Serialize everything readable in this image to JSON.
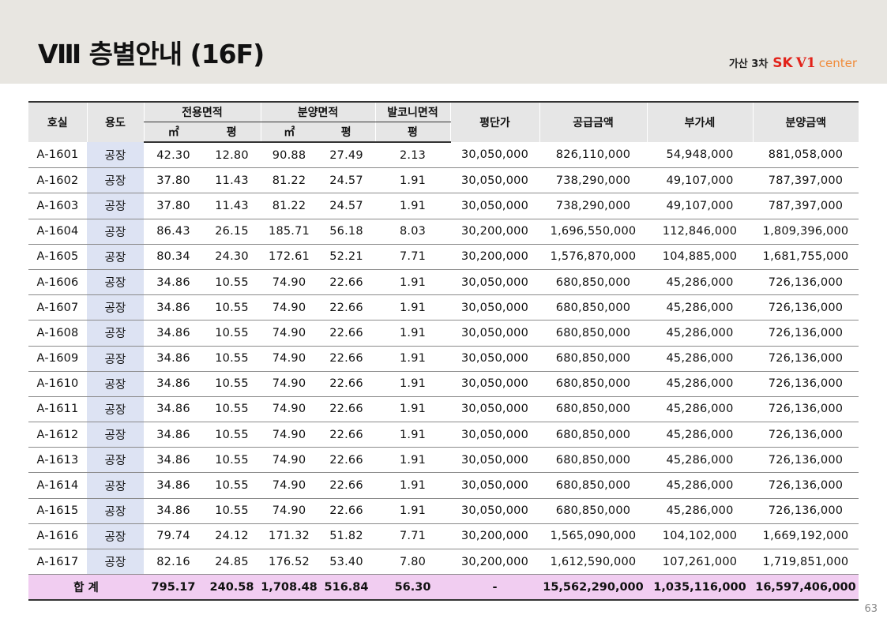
{
  "header": {
    "title": "Ⅷ 층별안내 (16F)",
    "brand_prefix": "가산 3차",
    "brand_logo": {
      "sk": "SK",
      "v1": "V1",
      "center": "center"
    }
  },
  "table": {
    "headers": {
      "room": "호실",
      "usage": "용도",
      "exclusive_area": "전용면적",
      "sale_area": "분양면적",
      "balcony_area": "발코니면적",
      "price_per_pyeong": "평단가",
      "supply_price": "공급금액",
      "vat": "부가세",
      "sale_price": "분양금액",
      "unit_sqm": "㎡",
      "unit_pyeong": "평"
    },
    "rows": [
      [
        "A-1601",
        "공장",
        "42.30",
        "12.80",
        "90.88",
        "27.49",
        "2.13",
        "30,050,000",
        "826,110,000",
        "54,948,000",
        "881,058,000"
      ],
      [
        "A-1602",
        "공장",
        "37.80",
        "11.43",
        "81.22",
        "24.57",
        "1.91",
        "30,050,000",
        "738,290,000",
        "49,107,000",
        "787,397,000"
      ],
      [
        "A-1603",
        "공장",
        "37.80",
        "11.43",
        "81.22",
        "24.57",
        "1.91",
        "30,050,000",
        "738,290,000",
        "49,107,000",
        "787,397,000"
      ],
      [
        "A-1604",
        "공장",
        "86.43",
        "26.15",
        "185.71",
        "56.18",
        "8.03",
        "30,200,000",
        "1,696,550,000",
        "112,846,000",
        "1,809,396,000"
      ],
      [
        "A-1605",
        "공장",
        "80.34",
        "24.30",
        "172.61",
        "52.21",
        "7.71",
        "30,200,000",
        "1,576,870,000",
        "104,885,000",
        "1,681,755,000"
      ],
      [
        "A-1606",
        "공장",
        "34.86",
        "10.55",
        "74.90",
        "22.66",
        "1.91",
        "30,050,000",
        "680,850,000",
        "45,286,000",
        "726,136,000"
      ],
      [
        "A-1607",
        "공장",
        "34.86",
        "10.55",
        "74.90",
        "22.66",
        "1.91",
        "30,050,000",
        "680,850,000",
        "45,286,000",
        "726,136,000"
      ],
      [
        "A-1608",
        "공장",
        "34.86",
        "10.55",
        "74.90",
        "22.66",
        "1.91",
        "30,050,000",
        "680,850,000",
        "45,286,000",
        "726,136,000"
      ],
      [
        "A-1609",
        "공장",
        "34.86",
        "10.55",
        "74.90",
        "22.66",
        "1.91",
        "30,050,000",
        "680,850,000",
        "45,286,000",
        "726,136,000"
      ],
      [
        "A-1610",
        "공장",
        "34.86",
        "10.55",
        "74.90",
        "22.66",
        "1.91",
        "30,050,000",
        "680,850,000",
        "45,286,000",
        "726,136,000"
      ],
      [
        "A-1611",
        "공장",
        "34.86",
        "10.55",
        "74.90",
        "22.66",
        "1.91",
        "30,050,000",
        "680,850,000",
        "45,286,000",
        "726,136,000"
      ],
      [
        "A-1612",
        "공장",
        "34.86",
        "10.55",
        "74.90",
        "22.66",
        "1.91",
        "30,050,000",
        "680,850,000",
        "45,286,000",
        "726,136,000"
      ],
      [
        "A-1613",
        "공장",
        "34.86",
        "10.55",
        "74.90",
        "22.66",
        "1.91",
        "30,050,000",
        "680,850,000",
        "45,286,000",
        "726,136,000"
      ],
      [
        "A-1614",
        "공장",
        "34.86",
        "10.55",
        "74.90",
        "22.66",
        "1.91",
        "30,050,000",
        "680,850,000",
        "45,286,000",
        "726,136,000"
      ],
      [
        "A-1615",
        "공장",
        "34.86",
        "10.55",
        "74.90",
        "22.66",
        "1.91",
        "30,050,000",
        "680,850,000",
        "45,286,000",
        "726,136,000"
      ],
      [
        "A-1616",
        "공장",
        "79.74",
        "24.12",
        "171.32",
        "51.82",
        "7.71",
        "30,200,000",
        "1,565,090,000",
        "104,102,000",
        "1,669,192,000"
      ],
      [
        "A-1617",
        "공장",
        "82.16",
        "24.85",
        "176.52",
        "53.40",
        "7.80",
        "30,200,000",
        "1,612,590,000",
        "107,261,000",
        "1,719,851,000"
      ]
    ],
    "total": {
      "label": "합  계",
      "values": [
        "795.17",
        "240.58",
        "1,708.48",
        "516.84",
        "56.30",
        "-",
        "15,562,290,000",
        "1,035,116,000",
        "16,597,406,000"
      ]
    }
  },
  "footer": {
    "page_number": "63"
  },
  "colors": {
    "header_band": "#e8e6e1",
    "usage_column": "#dde3f3",
    "total_row": "#f1cdf1",
    "logo_red": "#e2231a",
    "logo_orange": "#f08c3c"
  }
}
